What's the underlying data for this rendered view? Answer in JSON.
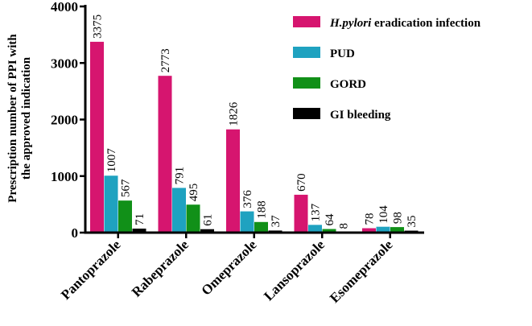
{
  "chart_data": {
    "type": "bar",
    "title": "",
    "xlabel": "",
    "ylabel_lines": [
      "Prescription number of PPI with",
      "the approved indication"
    ],
    "categories": [
      "Pantoprazole",
      "Rabeprazole",
      "Omeprazole",
      "Lansoprazole",
      "Esomeprazole"
    ],
    "ylim": [
      0,
      4000
    ],
    "yticks": [
      0,
      1000,
      2000,
      3000,
      4000
    ],
    "series": [
      {
        "name": "H.pylori eradication infection",
        "name_italic": "H.pylori",
        "name_rest": " eradication infection",
        "color": "#d6156f",
        "values": [
          3375,
          2773,
          1826,
          670,
          78
        ]
      },
      {
        "name": "PUD",
        "color": "#1fa2c0",
        "values": [
          1007,
          791,
          376,
          137,
          104
        ]
      },
      {
        "name": "GORD",
        "color": "#119018",
        "values": [
          567,
          495,
          188,
          64,
          98
        ]
      },
      {
        "name": "GI bleeding",
        "color": "#000000",
        "values": [
          71,
          61,
          37,
          8,
          35
        ]
      }
    ],
    "legend_position": "top-right"
  }
}
